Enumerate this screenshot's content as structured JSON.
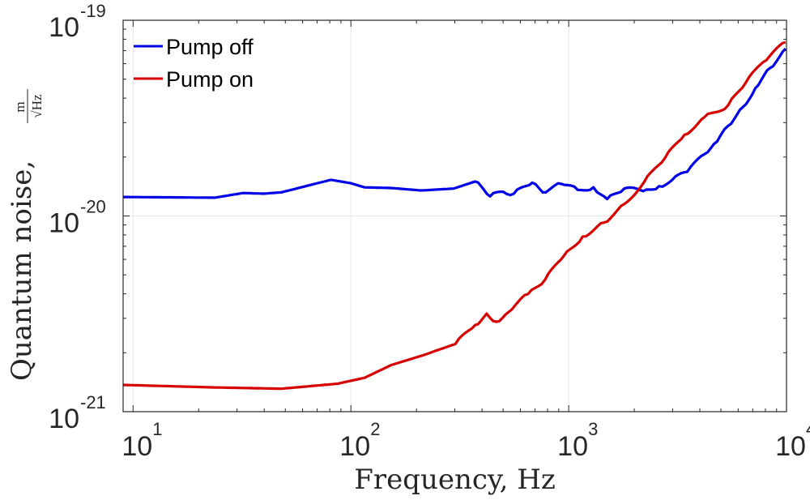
{
  "chart_data": {
    "type": "line",
    "title": "",
    "xlabel": "Frequency, Hz",
    "ylabel": "Quantum noise,",
    "ylabel_unit_numerator": "m",
    "ylabel_unit_denominator": "√Hz",
    "xscale": "log",
    "yscale": "log",
    "xlim": [
      9,
      10000
    ],
    "ylim": [
      1e-21,
      1e-19
    ],
    "grid": true,
    "legend_position": "top-left",
    "x_ticks": [
      {
        "value": 10,
        "base": "10",
        "exp": "1"
      },
      {
        "value": 100,
        "base": "10",
        "exp": "2"
      },
      {
        "value": 1000,
        "base": "10",
        "exp": "3"
      },
      {
        "value": 10000,
        "base": "10",
        "exp": "4"
      }
    ],
    "y_ticks": [
      {
        "value": 1e-21,
        "base": "10",
        "exp": "-21"
      },
      {
        "value": 1e-20,
        "base": "10",
        "exp": "-20"
      },
      {
        "value": 1e-19,
        "base": "10",
        "exp": "-19"
      }
    ],
    "series": [
      {
        "name": "Pump off",
        "color": "#0000e6",
        "x": [
          9,
          23.7,
          32,
          39.7,
          47.9,
          80.9,
          100,
          115.6,
          153,
          210,
          296,
          372,
          435,
          500,
          560,
          680,
          760,
          923,
          1100,
          1300,
          1500,
          1800,
          2200,
          2600,
          2990,
          3500,
          4200,
          4800,
          5400,
          6300,
          7200,
          8400,
          9900
        ],
        "y": [
          1.25e-20,
          1.24e-20,
          1.31e-20,
          1.3e-20,
          1.32e-20,
          1.53e-20,
          1.47e-20,
          1.4e-20,
          1.39e-20,
          1.35e-20,
          1.38e-20,
          1.5e-20,
          1.26e-20,
          1.33e-20,
          1.3e-20,
          1.48e-20,
          1.32e-20,
          1.46e-20,
          1.36e-20,
          1.4e-20,
          1.22e-20,
          1.38e-20,
          1.34e-20,
          1.42e-20,
          1.53e-20,
          1.68e-20,
          2.07e-20,
          2.4e-20,
          2.89e-20,
          3.6e-20,
          4.5e-20,
          5.7e-20,
          7.16e-20
        ]
      },
      {
        "name": "Pump on",
        "color": "#d60000",
        "x": [
          9,
          23.7,
          47.9,
          87,
          115.6,
          153,
          214,
          302,
          372,
          420,
          465,
          530,
          650,
          780,
          950,
          1160,
          1450,
          1800,
          2220,
          2770,
          3400,
          4200,
          5400,
          6500,
          7800,
          9900
        ],
        "y": [
          1.37e-21,
          1.33e-21,
          1.31e-21,
          1.39e-21,
          1.49e-21,
          1.73e-21,
          1.94e-21,
          2.22e-21,
          2.77e-21,
          3.17e-21,
          2.88e-21,
          3.23e-21,
          3.99e-21,
          4.74e-21,
          6.25e-21,
          7.86e-21,
          9.25e-21,
          1.15e-20,
          1.49e-20,
          1.98e-20,
          2.6e-20,
          3.2e-20,
          3.68e-20,
          4.8e-20,
          6.1e-20,
          7.73e-20
        ]
      }
    ]
  }
}
